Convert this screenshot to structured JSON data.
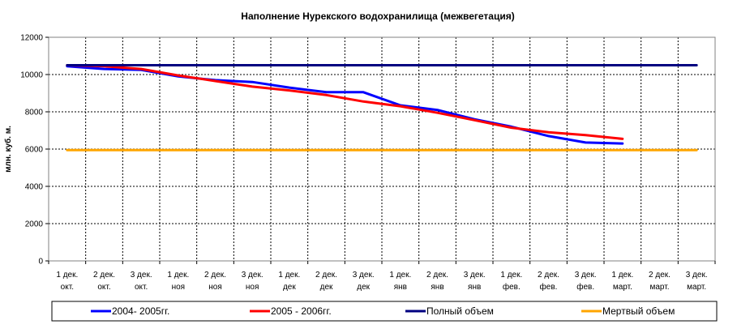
{
  "chart_data": {
    "type": "line",
    "title": "Наполнение Нурекского водохранилища (межвегетация)",
    "ylabel": "млн. куб. м.",
    "xlabel": "",
    "ylim": [
      0,
      12000
    ],
    "yticks": [
      "0",
      "2000",
      "4000",
      "6000",
      "8000",
      "10000",
      "12000"
    ],
    "grid": true,
    "legend_position": "bottom",
    "categories": [
      [
        "1 дек.",
        "окт."
      ],
      [
        "2 дек.",
        "окт."
      ],
      [
        "3 дек.",
        "окт."
      ],
      [
        "1 дек.",
        "ноя"
      ],
      [
        "2 дек.",
        "ноя"
      ],
      [
        "3 дек.",
        "ноя"
      ],
      [
        "1 дек.",
        "дек"
      ],
      [
        "2 дек.",
        "дек"
      ],
      [
        "3 дек.",
        "дек"
      ],
      [
        "1 дек.",
        "янв"
      ],
      [
        "2 дек.",
        "янв"
      ],
      [
        "3 дек.",
        "янв"
      ],
      [
        "1 дек.",
        "фев."
      ],
      [
        "2 дек.",
        "фев."
      ],
      [
        "3 дек.",
        "фев."
      ],
      [
        "1 дек.",
        "март."
      ],
      [
        "2 дек.",
        "март."
      ],
      [
        "3 дек.",
        "март."
      ]
    ],
    "series": [
      {
        "name": "2004- 2005гг.",
        "color": "#0000ff",
        "values": [
          10450,
          10300,
          10250,
          9900,
          9700,
          9600,
          9300,
          9050,
          9050,
          8350,
          8100,
          7600,
          7200,
          6700,
          6350,
          6300,
          null,
          null
        ]
      },
      {
        "name": "2005 - 2006гг.",
        "color": "#ff0000",
        "values": [
          10500,
          10450,
          10300,
          9950,
          9650,
          9350,
          9150,
          8900,
          8550,
          8300,
          7950,
          7550,
          7150,
          6900,
          6750,
          6550,
          null,
          null
        ]
      },
      {
        "name": "Полный объем",
        "color": "#000080",
        "values": [
          10500,
          10500,
          10500,
          10500,
          10500,
          10500,
          10500,
          10500,
          10500,
          10500,
          10500,
          10500,
          10500,
          10500,
          10500,
          10500,
          10500,
          10500
        ]
      },
      {
        "name": "Мертвый объем",
        "color": "#ffa500",
        "values": [
          5950,
          5950,
          5950,
          5950,
          5950,
          5950,
          5950,
          5950,
          5950,
          5950,
          5950,
          5950,
          5950,
          5950,
          5950,
          5950,
          5950,
          5950
        ]
      }
    ]
  }
}
